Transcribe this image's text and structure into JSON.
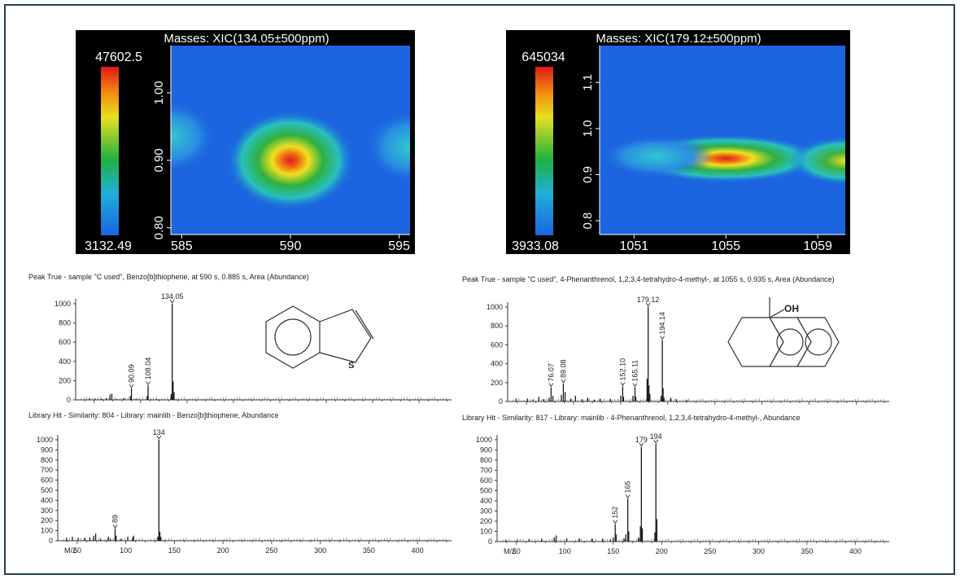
{
  "colors": {
    "frame": "#1f3f55",
    "plot_bg": "#000000",
    "stick": "#1a1a1a",
    "hot": "#d8231e",
    "cold": "#1c64e0"
  },
  "chart_data": [
    {
      "type": "heatmap",
      "title": "Masses:  XIC(134.05±500ppm)",
      "colorbar_max": "47602.5",
      "colorbar_min": "3132.49",
      "x_ticks": [
        "585",
        "590",
        "595"
      ],
      "y_ticks": [
        "1.00",
        "0.90",
        "0.80"
      ],
      "xlim": [
        584.5,
        595.5
      ],
      "ylim": [
        0.79,
        1.07
      ],
      "hotspots": [
        {
          "x": 590,
          "y": 0.9,
          "intensity": 1.0
        },
        {
          "x": 584.5,
          "y": 0.935,
          "intensity": 0.3
        },
        {
          "x": 595.5,
          "y": 0.92,
          "intensity": 0.32
        }
      ]
    },
    {
      "type": "heatmap",
      "title": "Masses:  XIC(179.12±500ppm)",
      "colorbar_max": "645034",
      "colorbar_min": "3933.08",
      "x_ticks": [
        "1051",
        "1055",
        "1059"
      ],
      "y_ticks": [
        "1.1",
        "1.0",
        "0.9",
        "0.8"
      ],
      "xlim": [
        1049.5,
        1060.2
      ],
      "ylim": [
        0.77,
        1.18
      ],
      "hotspots": [
        {
          "x": 1055,
          "y": 0.935,
          "intensity": 1.0
        },
        {
          "x": 1060.2,
          "y": 0.93,
          "intensity": 0.75
        },
        {
          "x": 1052,
          "y": 0.94,
          "intensity": 0.35
        }
      ]
    },
    {
      "type": "bar",
      "title": "Peak True - sample \"C used\", Benzo[b]thiophene, at 590 s, 0.885 s, Area (Abundance)",
      "xlim": [
        30,
        435
      ],
      "ylim": [
        0,
        1050
      ],
      "y_ticks": [
        "1000",
        "800",
        "600",
        "400",
        "200",
        "0"
      ],
      "peaks": [
        {
          "x": 134.05,
          "y": 1000,
          "label": "134.05"
        },
        {
          "x": 108.04,
          "y": 150,
          "label": "108.04"
        },
        {
          "x": 90.09,
          "y": 120,
          "label": "90.09"
        },
        {
          "x": 135,
          "y": 190
        },
        {
          "x": 136,
          "y": 80
        },
        {
          "x": 133,
          "y": 60
        },
        {
          "x": 69,
          "y": 65
        },
        {
          "x": 67,
          "y": 55
        },
        {
          "x": 63,
          "y": 20
        },
        {
          "x": 82,
          "y": 15
        },
        {
          "x": 89,
          "y": 40
        },
        {
          "x": 107,
          "y": 40
        },
        {
          "x": 45,
          "y": 18
        },
        {
          "x": 51,
          "y": 12
        },
        {
          "x": 58,
          "y": 12
        },
        {
          "x": 74,
          "y": 10
        },
        {
          "x": 95,
          "y": 10
        },
        {
          "x": 117,
          "y": 8
        }
      ]
    },
    {
      "type": "bar",
      "title": "Peak True - sample \"C used\", 4-Phenanthrenol, 1,2,3,4-tetrahydro-4-methyl-, at 1055 s, 0.935 s, Area (Abundance)",
      "xlim": [
        30,
        435
      ],
      "ylim": [
        0,
        1050
      ],
      "y_ticks": [
        "1000",
        "800",
        "600",
        "400",
        "200",
        "0"
      ],
      "peaks": [
        {
          "x": 179.12,
          "y": 1000,
          "label": "179.12"
        },
        {
          "x": 194.14,
          "y": 650,
          "label": "194.14"
        },
        {
          "x": 165.11,
          "y": 150,
          "label": "165.11"
        },
        {
          "x": 152.1,
          "y": 160,
          "label": "152.10"
        },
        {
          "x": 89.08,
          "y": 190,
          "label": "89.08"
        },
        {
          "x": 76.07,
          "y": 150,
          "label": "76.07"
        },
        {
          "x": 178,
          "y": 240
        },
        {
          "x": 180,
          "y": 170
        },
        {
          "x": 181,
          "y": 80
        },
        {
          "x": 193,
          "y": 60
        },
        {
          "x": 195,
          "y": 140
        },
        {
          "x": 196,
          "y": 40
        },
        {
          "x": 163,
          "y": 60
        },
        {
          "x": 166,
          "y": 50
        },
        {
          "x": 150,
          "y": 60
        },
        {
          "x": 153,
          "y": 50
        },
        {
          "x": 139,
          "y": 30
        },
        {
          "x": 128,
          "y": 30
        },
        {
          "x": 115,
          "y": 40
        },
        {
          "x": 102,
          "y": 60
        },
        {
          "x": 91,
          "y": 100
        },
        {
          "x": 87,
          "y": 70
        },
        {
          "x": 78,
          "y": 60
        },
        {
          "x": 74,
          "y": 40
        },
        {
          "x": 63,
          "y": 50
        },
        {
          "x": 51,
          "y": 30
        },
        {
          "x": 39,
          "y": 30
        },
        {
          "x": 57,
          "y": 20
        },
        {
          "x": 68,
          "y": 25
        },
        {
          "x": 97,
          "y": 30
        },
        {
          "x": 109,
          "y": 25
        },
        {
          "x": 122,
          "y": 20
        },
        {
          "x": 203,
          "y": 40
        },
        {
          "x": 209,
          "y": 25
        },
        {
          "x": 220,
          "y": 15
        }
      ]
    },
    {
      "type": "bar",
      "title": "Library Hit - Similarity: 804 - Library: mainlib - Benzo[b]thiophene, Abundance",
      "xlabel": "M/Z",
      "xlim": [
        30,
        435
      ],
      "ylim": [
        0,
        1050
      ],
      "x_ticks": [
        50,
        100,
        150,
        200,
        250,
        300,
        350,
        400
      ],
      "y_ticks": [
        "1000",
        "900",
        "800",
        "700",
        "600",
        "500",
        "400",
        "300",
        "200",
        "100",
        "0"
      ],
      "peaks": [
        {
          "x": 134,
          "y": 1000,
          "label": "134"
        },
        {
          "x": 89,
          "y": 120,
          "label": "89"
        },
        {
          "x": 135,
          "y": 90
        },
        {
          "x": 136,
          "y": 40
        },
        {
          "x": 133,
          "y": 40
        },
        {
          "x": 108,
          "y": 50
        },
        {
          "x": 107,
          "y": 30
        },
        {
          "x": 102,
          "y": 40
        },
        {
          "x": 90,
          "y": 50
        },
        {
          "x": 84,
          "y": 20
        },
        {
          "x": 82,
          "y": 40
        },
        {
          "x": 69,
          "y": 70
        },
        {
          "x": 67,
          "y": 50
        },
        {
          "x": 63,
          "y": 35
        },
        {
          "x": 58,
          "y": 25
        },
        {
          "x": 51,
          "y": 30
        },
        {
          "x": 45,
          "y": 40
        },
        {
          "x": 39,
          "y": 30
        },
        {
          "x": 74,
          "y": 20
        },
        {
          "x": 95,
          "y": 20
        }
      ]
    },
    {
      "type": "bar",
      "title": "Library Hit - Similarity: 817 - Library: mainlib - 4-Phenanthrenol, 1,2,3,4-tetrahydro-4-methyl-, Abundance",
      "xlabel": "M/Z",
      "xlim": [
        30,
        435
      ],
      "ylim": [
        0,
        1050
      ],
      "x_ticks": [
        50,
        100,
        150,
        200,
        250,
        300,
        350,
        400
      ],
      "y_ticks": [
        "1000",
        "900",
        "800",
        "700",
        "600",
        "500",
        "400",
        "300",
        "200",
        "100",
        "0"
      ],
      "peaks": [
        {
          "x": 194,
          "y": 960,
          "label": "194"
        },
        {
          "x": 179,
          "y": 930,
          "label": "179"
        },
        {
          "x": 165,
          "y": 420,
          "label": "165"
        },
        {
          "x": 152,
          "y": 170,
          "label": "152"
        },
        {
          "x": 178,
          "y": 150
        },
        {
          "x": 180,
          "y": 130
        },
        {
          "x": 195,
          "y": 220
        },
        {
          "x": 193,
          "y": 90
        },
        {
          "x": 166,
          "y": 100
        },
        {
          "x": 163,
          "y": 70
        },
        {
          "x": 153,
          "y": 70
        },
        {
          "x": 150,
          "y": 40
        },
        {
          "x": 139,
          "y": 30
        },
        {
          "x": 128,
          "y": 30
        },
        {
          "x": 115,
          "y": 30
        },
        {
          "x": 102,
          "y": 30
        },
        {
          "x": 91,
          "y": 60
        },
        {
          "x": 89,
          "y": 40
        },
        {
          "x": 76,
          "y": 30
        },
        {
          "x": 63,
          "y": 25
        },
        {
          "x": 51,
          "y": 20
        },
        {
          "x": 39,
          "y": 15
        },
        {
          "x": 176,
          "y": 40
        },
        {
          "x": 161,
          "y": 30
        },
        {
          "x": 147,
          "y": 20
        }
      ]
    }
  ]
}
